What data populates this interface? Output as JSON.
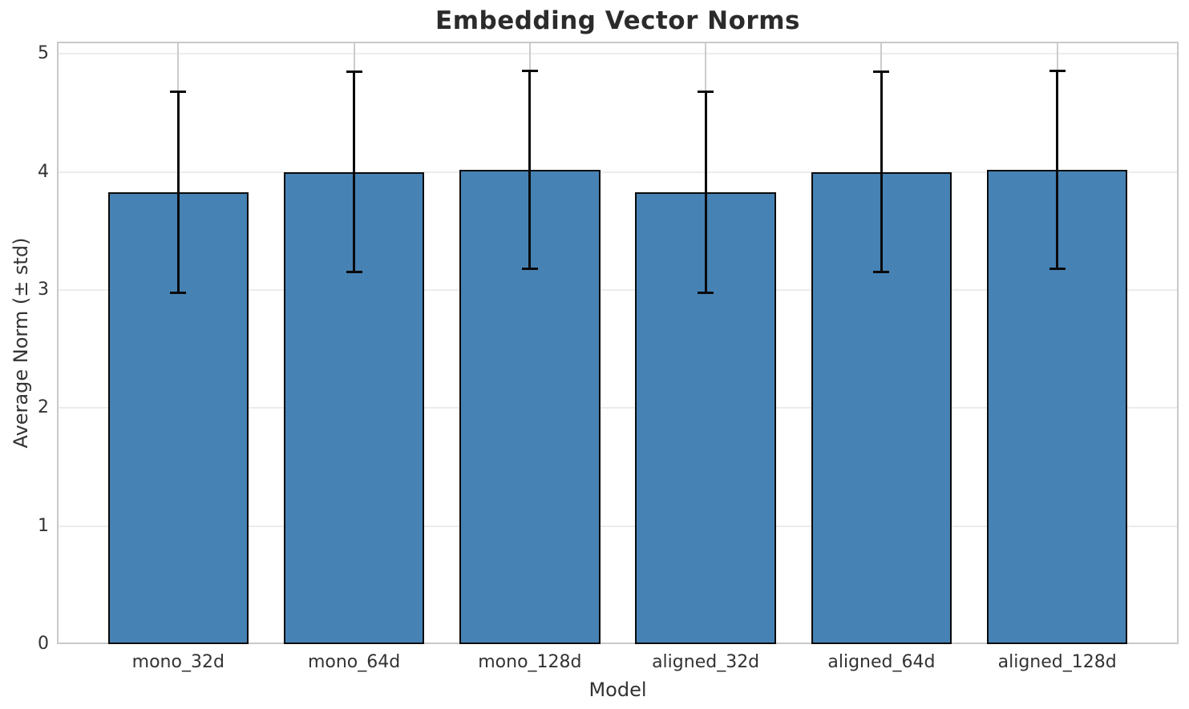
{
  "title": "Embedding Vector Norms",
  "chart_data": {
    "type": "bar",
    "title": "Embedding Vector Norms",
    "xlabel": "Model",
    "ylabel": "Average Norm (± std)",
    "categories": [
      "mono_32d",
      "mono_64d",
      "mono_128d",
      "aligned_32d",
      "aligned_64d",
      "aligned_128d"
    ],
    "values": [
      3.83,
      4.0,
      4.02,
      3.83,
      4.0,
      4.02
    ],
    "errors": [
      0.85,
      0.85,
      0.84,
      0.85,
      0.85,
      0.84
    ],
    "yticks": [
      0,
      1,
      2,
      3,
      4,
      5
    ],
    "ylim": [
      0,
      5.105
    ],
    "xlim": [
      -0.69,
      5.69
    ],
    "bar_width": 0.8,
    "grid": true,
    "legend": null,
    "bar_color": "#4682b4",
    "bar_edge_color": "#0a0a0a",
    "error_color": "#0a0a0a",
    "grid_color_h": "#ececec",
    "grid_color_v": "#cccccc",
    "spine_color": "#c9c9c9",
    "title_color": "#2b2b2b",
    "text_color": "#333333"
  }
}
